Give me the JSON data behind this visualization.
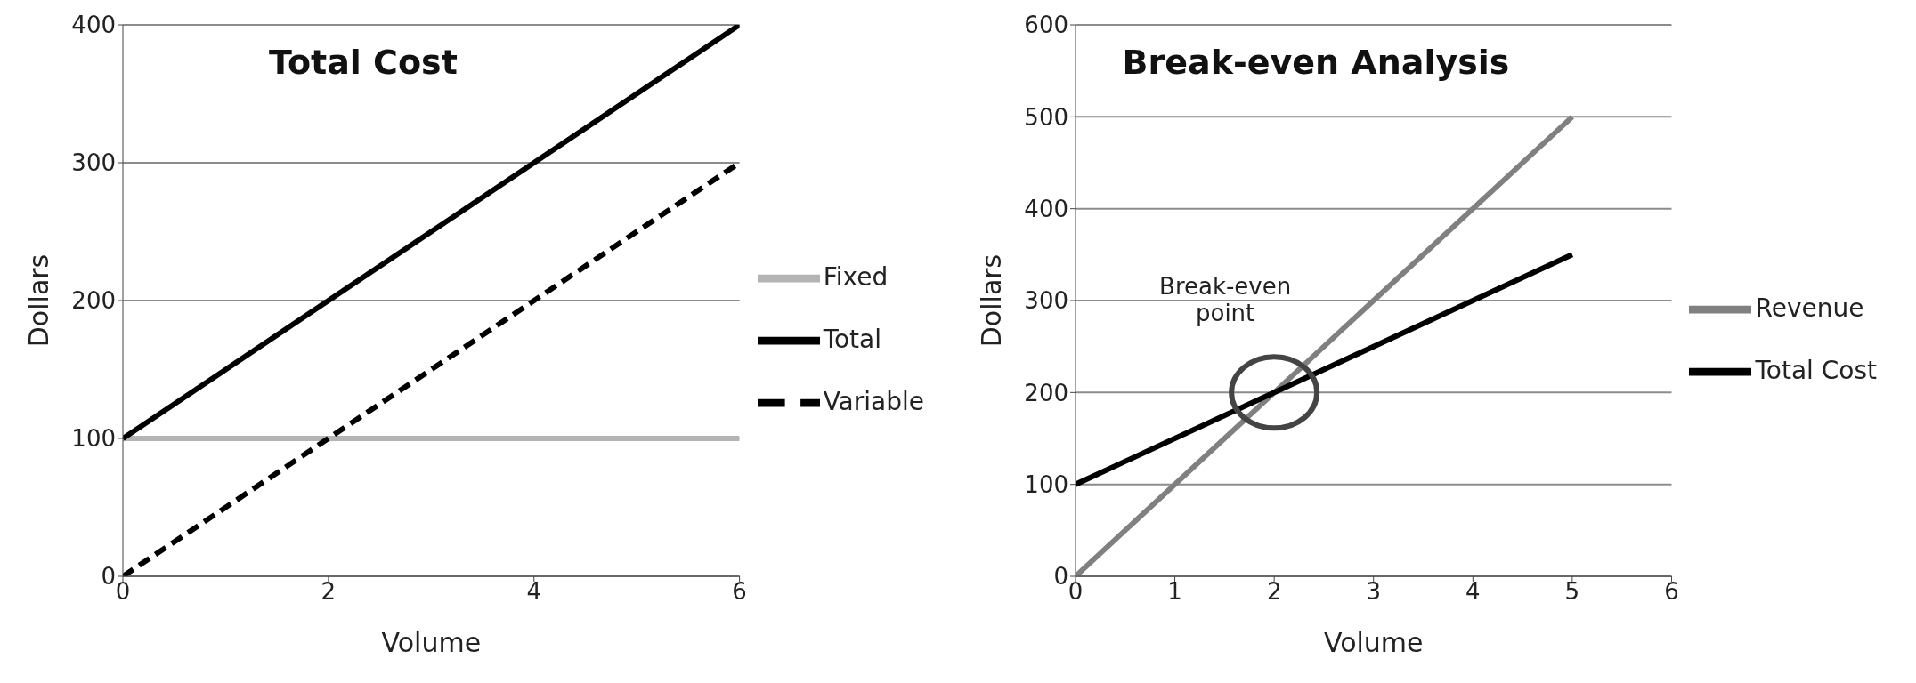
{
  "chart_data": [
    {
      "type": "line",
      "title": "Total Cost",
      "xlabel": "Volume",
      "ylabel": "Dollars",
      "x": [
        0,
        6
      ],
      "xlim": [
        0,
        6
      ],
      "xticks": [
        0,
        2,
        4,
        6
      ],
      "ylim": [
        0,
        400
      ],
      "yticks": [
        0,
        100,
        200,
        300,
        400
      ],
      "grid": "y",
      "legend": "right",
      "marker": "none",
      "series": [
        {
          "name": "Fixed",
          "color": "#b4b4b4",
          "values": [
            100,
            100
          ]
        },
        {
          "name": "Total",
          "color": "#000000",
          "values": [
            100,
            400
          ]
        },
        {
          "name": "Variable",
          "color": "#000000",
          "values": [
            0,
            300
          ],
          "line_style": "dashed"
        }
      ]
    },
    {
      "type": "line",
      "title": "Break-even Analysis",
      "xlabel": "Volume",
      "ylabel": "Dollars",
      "x": [
        0,
        5
      ],
      "xlim": [
        0,
        6
      ],
      "xticks": [
        0,
        1,
        2,
        3,
        4,
        5,
        6
      ],
      "ylim": [
        0,
        600
      ],
      "yticks": [
        0,
        100,
        200,
        300,
        400,
        500,
        600
      ],
      "grid": "y",
      "legend": "right",
      "marker": "none",
      "annotations": [
        {
          "text": "Break-even point",
          "x": 2,
          "y": 200
        }
      ],
      "series": [
        {
          "name": "Revenue",
          "color": "#808080",
          "values": [
            0,
            500
          ]
        },
        {
          "name": "Total Cost",
          "color": "#000000",
          "values": [
            100,
            350
          ]
        }
      ]
    }
  ]
}
